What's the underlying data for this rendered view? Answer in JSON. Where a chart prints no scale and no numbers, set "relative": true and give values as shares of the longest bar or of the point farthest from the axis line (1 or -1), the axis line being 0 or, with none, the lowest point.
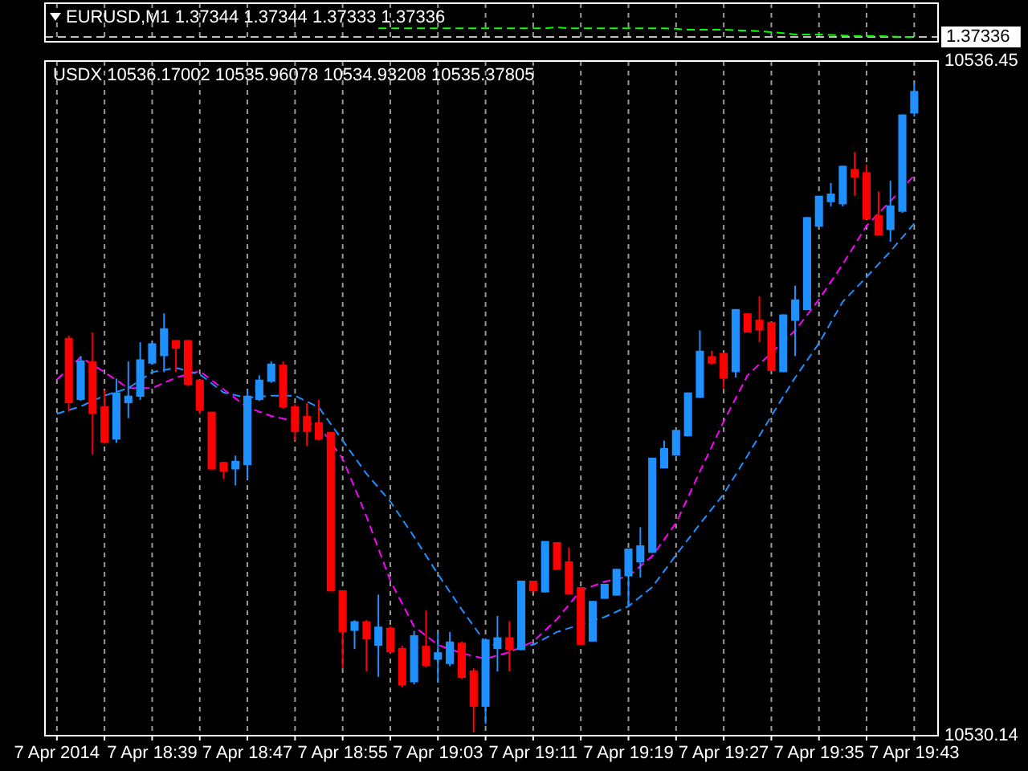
{
  "chart_data": [
    {
      "type": "line",
      "title": "EURUSD,M1 1.37344 1.37344 1.37333 1.37336",
      "relative": true,
      "color": "#00ff00",
      "line_style": "dashed",
      "grid": "x",
      "tick_labels": false,
      "x": [
        "2014-04-07T18:58",
        "2014-04-07T18:59",
        "2014-04-07T19:00",
        "2014-04-07T19:01",
        "2014-04-07T19:02",
        "2014-04-07T19:03",
        "2014-04-07T19:04",
        "2014-04-07T19:05",
        "2014-04-07T19:06",
        "2014-04-07T19:07",
        "2014-04-07T19:08",
        "2014-04-07T19:09",
        "2014-04-07T19:10",
        "2014-04-07T19:11",
        "2014-04-07T19:12",
        "2014-04-07T19:13",
        "2014-04-07T19:14",
        "2014-04-07T19:15",
        "2014-04-07T19:16",
        "2014-04-07T19:17",
        "2014-04-07T19:18",
        "2014-04-07T19:19",
        "2014-04-07T19:20",
        "2014-04-07T19:21",
        "2014-04-07T19:22",
        "2014-04-07T19:23",
        "2014-04-07T19:24",
        "2014-04-07T19:25",
        "2014-04-07T19:26",
        "2014-04-07T19:27",
        "2014-04-07T19:28",
        "2014-04-07T19:29",
        "2014-04-07T19:30",
        "2014-04-07T19:31",
        "2014-04-07T19:32",
        "2014-04-07T19:33",
        "2014-04-07T19:34",
        "2014-04-07T19:35",
        "2014-04-07T19:36",
        "2014-04-07T19:37",
        "2014-04-07T19:38",
        "2014-04-07T19:39",
        "2014-04-07T19:40",
        "2014-04-07T19:41",
        "2014-04-07T19:42",
        "2014-04-07T19:43"
      ],
      "values": [
        0.9,
        0.9,
        0.9,
        0.9,
        0.9,
        0.9,
        0.9,
        0.9,
        0.9,
        0.9,
        0.9,
        0.9,
        0.9,
        0.9,
        0.9,
        1,
        0.9,
        0.9,
        0.9,
        0.9,
        0.9,
        0.9,
        0.9,
        0.9,
        0.9,
        0.85,
        0.75,
        0.75,
        0.75,
        0.75,
        0.7,
        0.65,
        0.6,
        0.5,
        0.4,
        0.25,
        0.25,
        0.25,
        0.2,
        0.15,
        0.1,
        0.1,
        0.1,
        0.05,
        0,
        0
      ],
      "xlim": [
        "2014-04-07T18:30",
        "2014-04-07T19:45"
      ],
      "xticks": [
        {
          "value": "2014-04-07T18:31",
          "label": null
        },
        {
          "value": "2014-04-07T18:35",
          "label": null
        },
        {
          "value": "2014-04-07T18:39",
          "label": null
        },
        {
          "value": "2014-04-07T18:43",
          "label": null
        },
        {
          "value": "2014-04-07T18:47",
          "label": null
        },
        {
          "value": "2014-04-07T18:51",
          "label": null
        },
        {
          "value": "2014-04-07T18:55",
          "label": null
        },
        {
          "value": "2014-04-07T18:59",
          "label": null
        },
        {
          "value": "2014-04-07T19:03",
          "label": null
        },
        {
          "value": "2014-04-07T19:07",
          "label": null
        },
        {
          "value": "2014-04-07T19:11",
          "label": null
        },
        {
          "value": "2014-04-07T19:15",
          "label": null
        },
        {
          "value": "2014-04-07T19:19",
          "label": null
        },
        {
          "value": "2014-04-07T19:23",
          "label": null
        },
        {
          "value": "2014-04-07T19:27",
          "label": null
        },
        {
          "value": "2014-04-07T19:31",
          "label": null
        },
        {
          "value": "2014-04-07T19:35",
          "label": null
        },
        {
          "value": "2014-04-07T19:39",
          "label": null
        },
        {
          "value": "2014-04-07T19:43",
          "label": null
        }
      ],
      "ref_lines": [
        {
          "axis": "y",
          "value": 0,
          "color": "#c0c0c0",
          "line_style": "dashed"
        }
      ],
      "annotations": [
        "1.37336"
      ]
    },
    {
      "type": "candlestick",
      "title": "USDX 10536.17002 10535.96078 10534.93208 10535.37805",
      "grid": "x",
      "line_style": "dashed",
      "x": [
        "2014-04-07T18:32",
        "2014-04-07T18:33",
        "2014-04-07T18:34",
        "2014-04-07T18:35",
        "2014-04-07T18:36",
        "2014-04-07T18:37",
        "2014-04-07T18:38",
        "2014-04-07T18:39",
        "2014-04-07T18:40",
        "2014-04-07T18:41",
        "2014-04-07T18:42",
        "2014-04-07T18:43",
        "2014-04-07T18:44",
        "2014-04-07T18:45",
        "2014-04-07T18:46",
        "2014-04-07T18:47",
        "2014-04-07T18:48",
        "2014-04-07T18:49",
        "2014-04-07T18:50",
        "2014-04-07T18:51",
        "2014-04-07T18:52",
        "2014-04-07T18:53",
        "2014-04-07T18:54",
        "2014-04-07T18:55",
        "2014-04-07T18:56",
        "2014-04-07T18:57",
        "2014-04-07T18:58",
        "2014-04-07T18:59",
        "2014-04-07T19:00",
        "2014-04-07T19:01",
        "2014-04-07T19:02",
        "2014-04-07T19:03",
        "2014-04-07T19:04",
        "2014-04-07T19:05",
        "2014-04-07T19:06",
        "2014-04-07T19:07",
        "2014-04-07T19:08",
        "2014-04-07T19:09",
        "2014-04-07T19:10",
        "2014-04-07T19:11",
        "2014-04-07T19:12",
        "2014-04-07T19:13",
        "2014-04-07T19:14",
        "2014-04-07T19:15",
        "2014-04-07T19:16",
        "2014-04-07T19:17",
        "2014-04-07T19:18",
        "2014-04-07T19:19",
        "2014-04-07T19:20",
        "2014-04-07T19:21",
        "2014-04-07T19:22",
        "2014-04-07T19:23",
        "2014-04-07T19:24",
        "2014-04-07T19:25",
        "2014-04-07T19:26",
        "2014-04-07T19:27",
        "2014-04-07T19:28",
        "2014-04-07T19:29",
        "2014-04-07T19:30",
        "2014-04-07T19:31",
        "2014-04-07T19:32",
        "2014-04-07T19:33",
        "2014-04-07T19:34",
        "2014-04-07T19:35",
        "2014-04-07T19:36",
        "2014-04-07T19:37",
        "2014-04-07T19:38",
        "2014-04-07T19:39",
        "2014-04-07T19:40",
        "2014-04-07T19:41",
        "2014-04-07T19:42",
        "2014-04-07T19:43"
      ],
      "ohlc": [
        [
          10533.86,
          10533.88,
          10533.17,
          10533.25
        ],
        [
          10533.28,
          10533.69,
          10533.27,
          10533.65
        ],
        [
          10533.64,
          10533.91,
          10532.77,
          10533.15
        ],
        [
          10533.22,
          10533.37,
          10532.87,
          10532.88
        ],
        [
          10532.91,
          10533.48,
          10532.88,
          10533.35
        ],
        [
          10533.25,
          10533.64,
          10533.11,
          10533.32
        ],
        [
          10533.31,
          10533.82,
          10533.28,
          10533.66
        ],
        [
          10533.62,
          10533.82,
          10533.61,
          10533.81
        ],
        [
          10533.69,
          10534.09,
          10533.54,
          10533.95
        ],
        [
          10533.84,
          10533.84,
          10533.54,
          10533.76
        ],
        [
          10533.84,
          10533.84,
          10533.41,
          10533.42
        ],
        [
          10533.47,
          10533.47,
          10533.15,
          10533.18
        ],
        [
          10533.17,
          10533.17,
          10532.63,
          10532.63
        ],
        [
          10532.7,
          10532.7,
          10532.54,
          10532.61
        ],
        [
          10532.63,
          10532.76,
          10532.48,
          10532.71
        ],
        [
          10532.67,
          10533.37,
          10532.54,
          10533.32
        ],
        [
          10533.28,
          10533.51,
          10533.27,
          10533.47
        ],
        [
          10533.45,
          10533.64,
          10533.44,
          10533.62
        ],
        [
          10533.61,
          10533.64,
          10533.2,
          10533.21
        ],
        [
          10533.22,
          10533.24,
          10532.9,
          10532.98
        ],
        [
          10533.13,
          10533.25,
          10532.85,
          10532.98
        ],
        [
          10533.07,
          10533.28,
          10532.9,
          10532.91
        ],
        [
          10532.98,
          10532.98,
          10531.49,
          10531.49
        ],
        [
          10531.5,
          10531.5,
          10530.77,
          10531.11
        ],
        [
          10531.12,
          10531.22,
          10530.95,
          10531.21
        ],
        [
          10531.21,
          10531.22,
          10530.74,
          10531.04
        ],
        [
          10530.98,
          10531.46,
          10530.69,
          10531.16
        ],
        [
          10531.15,
          10531.16,
          10530.91,
          10530.92
        ],
        [
          10530.96,
          10530.98,
          10530.59,
          10530.61
        ],
        [
          10530.64,
          10531.12,
          10530.62,
          10531.08
        ],
        [
          10530.98,
          10531.31,
          10530.78,
          10530.79
        ],
        [
          10530.85,
          10531.11,
          10530.64,
          10530.92
        ],
        [
          10530.81,
          10531.11,
          10530.79,
          10531.02
        ],
        [
          10531.01,
          10531.02,
          10530.67,
          10530.68
        ],
        [
          10530.75,
          10530.77,
          10530.17,
          10530.41
        ],
        [
          10530.41,
          10531.05,
          10530.25,
          10531.04
        ],
        [
          10530.95,
          10531.26,
          10530.74,
          10531.06
        ],
        [
          10531.06,
          10531.21,
          10530.74,
          10530.94
        ],
        [
          10530.94,
          10531.59,
          10530.94,
          10531.59
        ],
        [
          10531.59,
          10531.59,
          10531.49,
          10531.49
        ],
        [
          10531.48,
          10531.96,
          10531.48,
          10531.96
        ],
        [
          10531.95,
          10531.95,
          10531.69,
          10531.69
        ],
        [
          10531.77,
          10531.9,
          10531.46,
          10531.46
        ],
        [
          10531.53,
          10531.53,
          10530.99,
          10530.99
        ],
        [
          10531.02,
          10531.4,
          10531.02,
          10531.4
        ],
        [
          10531.42,
          10531.56,
          10531.42,
          10531.56
        ],
        [
          10531.45,
          10531.7,
          10531.45,
          10531.7
        ],
        [
          10531.63,
          10531.89,
          10531.35,
          10531.89
        ],
        [
          10531.76,
          10532.09,
          10531.62,
          10531.92
        ],
        [
          10531.85,
          10532.74,
          10531.85,
          10532.74
        ],
        [
          10532.64,
          10532.9,
          10532.64,
          10532.83
        ],
        [
          10532.76,
          10533.0,
          10532.76,
          10533.0
        ],
        [
          10532.94,
          10533.35,
          10532.94,
          10533.35
        ],
        [
          10533.3,
          10533.93,
          10533.3,
          10533.74
        ],
        [
          10533.69,
          10533.74,
          10533.61,
          10533.62
        ],
        [
          10533.72,
          10533.72,
          10533.39,
          10533.48
        ],
        [
          10533.54,
          10534.13,
          10533.49,
          10534.13
        ],
        [
          10534.09,
          10534.09,
          10533.91,
          10533.91
        ],
        [
          10534.03,
          10534.25,
          10533.82,
          10533.93
        ],
        [
          10534.01,
          10534.01,
          10533.55,
          10533.55
        ],
        [
          10533.54,
          10534.08,
          10533.54,
          10534.08
        ],
        [
          10534.02,
          10534.35,
          10533.69,
          10534.22
        ],
        [
          10534.12,
          10534.99,
          10534.12,
          10534.99
        ],
        [
          10534.9,
          10535.19,
          10534.9,
          10535.19
        ],
        [
          10535.13,
          10535.31,
          10535.09,
          10535.21
        ],
        [
          10535.11,
          10535.47,
          10535.09,
          10535.47
        ],
        [
          10535.44,
          10535.6,
          10535.19,
          10535.36
        ],
        [
          10535.41,
          10535.48,
          10534.97,
          10534.97
        ],
        [
          10535.01,
          10535.23,
          10534.82,
          10534.82
        ],
        [
          10534.87,
          10535.33,
          10534.76,
          10535.1
        ],
        [
          10535.04,
          10535.95,
          10535.03,
          10535.95
        ],
        [
          10535.96,
          10536.24,
          10535.93,
          10536.17
        ]
      ],
      "colors": [
        "#ff0000",
        "#1e90ff",
        "#ff0000",
        "#ff0000",
        "#1e90ff",
        "#1e90ff",
        "#1e90ff",
        "#1e90ff",
        "#1e90ff",
        "#ff0000",
        "#ff0000",
        "#ff0000",
        "#ff0000",
        "#ff0000",
        "#1e90ff",
        "#1e90ff",
        "#1e90ff",
        "#1e90ff",
        "#ff0000",
        "#ff0000",
        "#ff0000",
        "#ff0000",
        "#ff0000",
        "#ff0000",
        "#1e90ff",
        "#ff0000",
        "#1e90ff",
        "#ff0000",
        "#ff0000",
        "#1e90ff",
        "#ff0000",
        "#1e90ff",
        "#1e90ff",
        "#ff0000",
        "#ff0000",
        "#1e90ff",
        "#1e90ff",
        "#ff0000",
        "#1e90ff",
        "#ff0000",
        "#1e90ff",
        "#ff0000",
        "#ff0000",
        "#ff0000",
        "#1e90ff",
        "#1e90ff",
        "#1e90ff",
        "#1e90ff",
        "#1e90ff",
        "#1e90ff",
        "#1e90ff",
        "#1e90ff",
        "#1e90ff",
        "#1e90ff",
        "#ff0000",
        "#ff0000",
        "#1e90ff",
        "#ff0000",
        "#ff0000",
        "#ff0000",
        "#1e90ff",
        "#1e90ff",
        "#1e90ff",
        "#1e90ff",
        "#1e90ff",
        "#1e90ff",
        "#ff0000",
        "#ff0000",
        "#ff0000",
        "#1e90ff",
        "#1e90ff",
        "#1e90ff"
      ],
      "series": [
        {
          "type": "line",
          "color": "#ff00ff",
          "x": [
            "2014-04-07T18:31",
            "2014-04-07T18:33",
            "2014-04-07T18:35",
            "2014-04-07T18:37",
            "2014-04-07T18:39",
            "2014-04-07T18:41",
            "2014-04-07T18:43",
            "2014-04-07T18:45",
            "2014-04-07T18:47",
            "2014-04-07T18:49",
            "2014-04-07T18:51",
            "2014-04-07T18:53",
            "2014-04-07T18:55",
            "2014-04-07T18:57",
            "2014-04-07T18:59",
            "2014-04-07T19:01",
            "2014-04-07T19:03",
            "2014-04-07T19:05",
            "2014-04-07T19:07",
            "2014-04-07T19:09",
            "2014-04-07T19:11",
            "2014-04-07T19:13",
            "2014-04-07T19:15",
            "2014-04-07T19:17",
            "2014-04-07T19:19",
            "2014-04-07T19:21",
            "2014-04-07T19:23",
            "2014-04-07T19:25",
            "2014-04-07T19:27",
            "2014-04-07T19:29",
            "2014-04-07T19:31",
            "2014-04-07T19:33",
            "2014-04-07T19:35",
            "2014-04-07T19:37",
            "2014-04-07T19:39",
            "2014-04-07T19:41",
            "2014-04-07T19:43"
          ],
          "values": [
            10533.47,
            10533.68,
            10533.54,
            10533.39,
            10533.39,
            10533.49,
            10533.55,
            10533.38,
            10533.21,
            10533.13,
            10533.08,
            10533.04,
            10532.73,
            10532.19,
            10531.59,
            10531.16,
            10530.99,
            10530.91,
            10530.86,
            10530.92,
            10531.02,
            10531.23,
            10531.5,
            10531.58,
            10531.63,
            10531.82,
            10532.13,
            10532.61,
            10533.08,
            10533.51,
            10533.72,
            10533.93,
            10534.22,
            10534.55,
            10534.91,
            10535.14,
            10535.38
          ]
        },
        {
          "type": "line",
          "color": "#1e90ff",
          "x": [
            "2014-04-07T18:31",
            "2014-04-07T18:33",
            "2014-04-07T18:35",
            "2014-04-07T18:37",
            "2014-04-07T18:39",
            "2014-04-07T18:41",
            "2014-04-07T18:43",
            "2014-04-07T18:45",
            "2014-04-07T18:47",
            "2014-04-07T18:49",
            "2014-04-07T18:51",
            "2014-04-07T18:53",
            "2014-04-07T18:55",
            "2014-04-07T18:57",
            "2014-04-07T18:59",
            "2014-04-07T19:01",
            "2014-04-07T19:03",
            "2014-04-07T19:05",
            "2014-04-07T19:07",
            "2014-04-07T19:09",
            "2014-04-07T19:11",
            "2014-04-07T19:13",
            "2014-04-07T19:17",
            "2014-04-07T19:19",
            "2014-04-07T19:21",
            "2014-04-07T19:23",
            "2014-04-07T19:25",
            "2014-04-07T19:27",
            "2014-04-07T19:29",
            "2014-04-07T19:31",
            "2014-04-07T19:33",
            "2014-04-07T19:35",
            "2014-04-07T19:37",
            "2014-04-07T19:39",
            "2014-04-07T19:41",
            "2014-04-07T19:43"
          ],
          "values": [
            10533.15,
            10533.22,
            10533.32,
            10533.39,
            10533.54,
            10533.58,
            10533.52,
            10533.35,
            10533.3,
            10533.32,
            10533.32,
            10533.21,
            10532.9,
            10532.59,
            10532.33,
            10532.0,
            10531.65,
            10531.32,
            10531.01,
            10530.95,
            10530.99,
            10531.11,
            10531.25,
            10531.35,
            10531.53,
            10531.83,
            10532.12,
            10532.4,
            10532.76,
            10533.13,
            10533.49,
            10533.81,
            10534.2,
            10534.43,
            10534.67,
            10534.93
          ]
        }
      ],
      "xlim": [
        "2014-04-07T18:30",
        "2014-04-07T19:45"
      ],
      "xticks": [
        {
          "value": "2014-04-07T18:31",
          "label": "7 Apr 2014"
        },
        {
          "value": "2014-04-07T18:35",
          "label": null
        },
        {
          "value": "2014-04-07T18:39",
          "label": "7 Apr 18:39"
        },
        {
          "value": "2014-04-07T18:43",
          "label": null
        },
        {
          "value": "2014-04-07T18:47",
          "label": "7 Apr 18:47"
        },
        {
          "value": "2014-04-07T18:51",
          "label": null
        },
        {
          "value": "2014-04-07T18:55",
          "label": "7 Apr 18:55"
        },
        {
          "value": "2014-04-07T18:59",
          "label": null
        },
        {
          "value": "2014-04-07T19:03",
          "label": "7 Apr 19:03"
        },
        {
          "value": "2014-04-07T19:07",
          "label": null
        },
        {
          "value": "2014-04-07T19:11",
          "label": "7 Apr 19:11"
        },
        {
          "value": "2014-04-07T19:15",
          "label": null
        },
        {
          "value": "2014-04-07T19:19",
          "label": "7 Apr 19:19"
        },
        {
          "value": "2014-04-07T19:23",
          "label": null
        },
        {
          "value": "2014-04-07T19:27",
          "label": "7 Apr 19:27"
        },
        {
          "value": "2014-04-07T19:31",
          "label": null
        },
        {
          "value": "2014-04-07T19:35",
          "label": "7 Apr 19:35"
        },
        {
          "value": "2014-04-07T19:39",
          "label": null
        },
        {
          "value": "2014-04-07T19:43",
          "label": "7 Apr 19:43"
        }
      ],
      "ylim": [
        10530.14,
        10536.45
      ],
      "yticks": [
        10530.14,
        10536.45
      ]
    }
  ]
}
